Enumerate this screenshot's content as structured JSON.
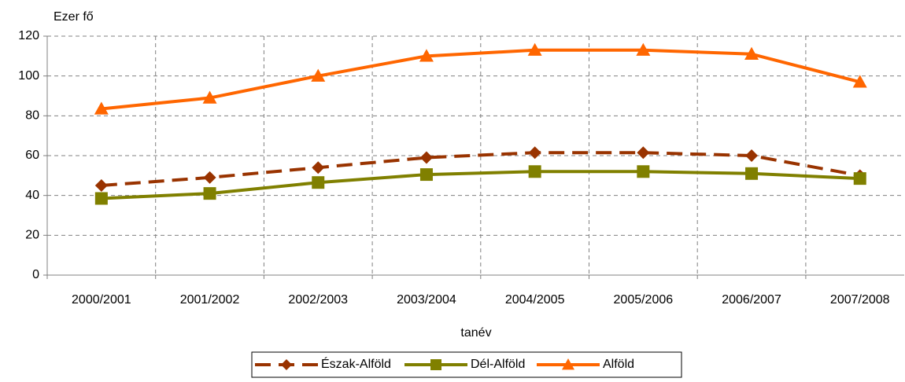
{
  "chart_data": {
    "type": "line",
    "y_label": "Ezer fő",
    "x_label": "tanév",
    "categories": [
      "2000/2001",
      "2001/2002",
      "2002/2003",
      "2003/2004",
      "2004/2005",
      "2005/2006",
      "2006/2007",
      "2007/2008"
    ],
    "series": [
      {
        "name": "Észak-Alföld",
        "color": "#993300",
        "marker": "diamond",
        "dashed": true,
        "values": [
          45,
          49,
          54,
          59,
          61.5,
          61.5,
          60,
          50
        ]
      },
      {
        "name": "Dél-Alföld",
        "color": "#808000",
        "marker": "square",
        "dashed": false,
        "values": [
          38.5,
          41,
          46.5,
          50.5,
          52,
          52,
          51,
          48.5
        ]
      },
      {
        "name": "Alföld",
        "color": "#FF6600",
        "marker": "triangle",
        "dashed": false,
        "values": [
          83.5,
          89,
          100,
          110,
          113,
          113,
          111,
          97
        ]
      }
    ],
    "ylim": [
      0,
      120
    ],
    "yticks": [
      0,
      20,
      40,
      60,
      80,
      100,
      120
    ],
    "grid": true,
    "legend": "bottom"
  }
}
